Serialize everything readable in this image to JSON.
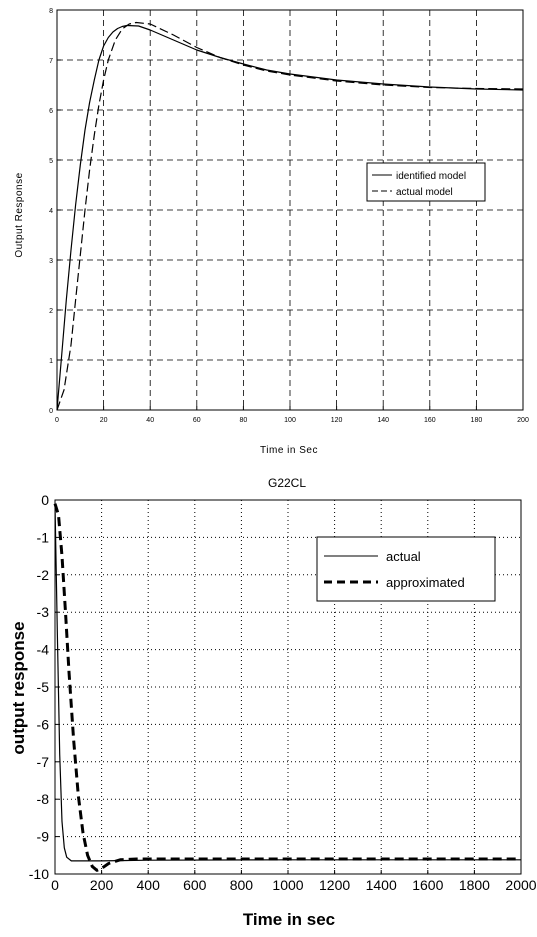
{
  "chart_data": [
    {
      "type": "line",
      "title": "",
      "xlabel": "Time  in  Sec",
      "ylabel": "Output  Response",
      "xlim": [
        0,
        200
      ],
      "ylim": [
        0,
        8
      ],
      "xticks": [
        0,
        20,
        40,
        60,
        80,
        100,
        120,
        140,
        160,
        180,
        200
      ],
      "yticks": [
        0,
        1,
        2,
        3,
        4,
        5,
        6,
        7,
        8
      ],
      "grid": "dashed",
      "legend_position": "right-middle",
      "series": [
        {
          "name": "identified  model",
          "style": "solid",
          "points": [
            [
              0,
              0
            ],
            [
              2,
              1.1
            ],
            [
              4,
              2.2
            ],
            [
              6,
              3.2
            ],
            [
              8,
              4.1
            ],
            [
              10,
              4.9
            ],
            [
              12,
              5.6
            ],
            [
              14,
              6.15
            ],
            [
              16,
              6.6
            ],
            [
              18,
              7.0
            ],
            [
              20,
              7.28
            ],
            [
              22,
              7.45
            ],
            [
              24,
              7.56
            ],
            [
              26,
              7.63
            ],
            [
              28,
              7.67
            ],
            [
              30,
              7.69
            ],
            [
              35,
              7.68
            ],
            [
              40,
              7.6
            ],
            [
              50,
              7.4
            ],
            [
              60,
              7.2
            ],
            [
              70,
              7.05
            ],
            [
              80,
              6.92
            ],
            [
              90,
              6.8
            ],
            [
              100,
              6.72
            ],
            [
              120,
              6.6
            ],
            [
              140,
              6.52
            ],
            [
              160,
              6.46
            ],
            [
              180,
              6.42
            ],
            [
              200,
              6.4
            ]
          ]
        },
        {
          "name": "actual model",
          "style": "dashed",
          "points": [
            [
              0,
              0
            ],
            [
              3,
              0.4
            ],
            [
              6,
              1.3
            ],
            [
              8,
              2.2
            ],
            [
              10,
              3.1
            ],
            [
              12,
              4.0
            ],
            [
              14,
              4.8
            ],
            [
              16,
              5.5
            ],
            [
              18,
              6.1
            ],
            [
              20,
              6.6
            ],
            [
              22,
              7.0
            ],
            [
              25,
              7.4
            ],
            [
              28,
              7.62
            ],
            [
              31,
              7.72
            ],
            [
              34,
              7.75
            ],
            [
              40,
              7.72
            ],
            [
              50,
              7.5
            ],
            [
              60,
              7.25
            ],
            [
              70,
              7.05
            ],
            [
              80,
              6.9
            ],
            [
              90,
              6.78
            ],
            [
              100,
              6.7
            ],
            [
              120,
              6.58
            ],
            [
              140,
              6.5
            ],
            [
              160,
              6.45
            ],
            [
              180,
              6.43
            ],
            [
              200,
              6.42
            ]
          ]
        }
      ]
    },
    {
      "type": "line",
      "title": "G22CL",
      "xlabel": "Time  in  sec",
      "ylabel": "output  response",
      "xlim": [
        0,
        2000
      ],
      "ylim": [
        -10,
        0
      ],
      "xticks": [
        0,
        200,
        400,
        600,
        800,
        1000,
        1200,
        1400,
        1600,
        1800,
        2000
      ],
      "yticks": [
        0,
        -1,
        -2,
        -3,
        -4,
        -5,
        -6,
        -7,
        -8,
        -9,
        -10
      ],
      "grid": "dotted",
      "legend_position": "top-right",
      "series": [
        {
          "name": "actual",
          "style": "solid",
          "points": [
            [
              0,
              -0.1
            ],
            [
              10,
              -3.5
            ],
            [
              20,
              -6.8
            ],
            [
              30,
              -8.6
            ],
            [
              40,
              -9.3
            ],
            [
              50,
              -9.55
            ],
            [
              70,
              -9.65
            ],
            [
              100,
              -9.65
            ],
            [
              150,
              -9.65
            ],
            [
              200,
              -9.65
            ],
            [
              400,
              -9.63
            ],
            [
              1000,
              -9.62
            ],
            [
              2000,
              -9.62
            ]
          ]
        },
        {
          "name": "approximated",
          "style": "bold-dashed",
          "points": [
            [
              0,
              -0.1
            ],
            [
              15,
              -0.4
            ],
            [
              30,
              -1.5
            ],
            [
              45,
              -3.0
            ],
            [
              60,
              -4.6
            ],
            [
              80,
              -6.4
            ],
            [
              100,
              -7.9
            ],
            [
              120,
              -8.9
            ],
            [
              140,
              -9.5
            ],
            [
              160,
              -9.8
            ],
            [
              180,
              -9.9
            ],
            [
              200,
              -9.85
            ],
            [
              230,
              -9.72
            ],
            [
              280,
              -9.62
            ],
            [
              350,
              -9.6
            ],
            [
              500,
              -9.6
            ],
            [
              1000,
              -9.6
            ],
            [
              2000,
              -9.6
            ]
          ]
        }
      ]
    }
  ]
}
